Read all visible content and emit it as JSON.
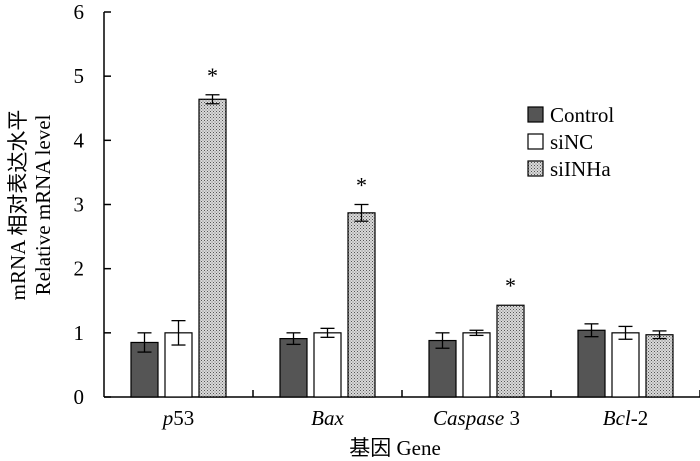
{
  "chart_data": {
    "type": "bar",
    "title": "",
    "ylabel_line1": "mRNA 相对表达水平",
    "ylabel_line2": "Relative mRNA level",
    "xlabel": "基因 Gene",
    "ylim": [
      0,
      6
    ],
    "yticks": [
      0,
      1,
      2,
      3,
      4,
      5,
      6
    ],
    "categories": [
      {
        "italic": "p",
        "plain": "53"
      },
      {
        "italic": "Bax",
        "plain": ""
      },
      {
        "italic": "Caspase",
        "plain": " 3"
      },
      {
        "italic": "Bcl",
        "plain": "-2"
      }
    ],
    "series": [
      {
        "name": "Control",
        "fill": "#555555",
        "pattern": "solid",
        "values": [
          0.85,
          0.91,
          0.88,
          1.04
        ],
        "errors": [
          0.15,
          0.09,
          0.12,
          0.1
        ]
      },
      {
        "name": "siNC",
        "fill": "#ffffff",
        "pattern": "solid",
        "values": [
          1.0,
          1.0,
          1.0,
          1.0
        ],
        "errors": [
          0.19,
          0.07,
          0.04,
          0.1
        ]
      },
      {
        "name": "siINHa",
        "fill": "#bbbbbb",
        "pattern": "stipple",
        "values": [
          4.64,
          2.87,
          1.43,
          0.97
        ],
        "errors": [
          0.07,
          0.13,
          0.0,
          0.06
        ]
      }
    ],
    "significance": [
      "*",
      "*",
      "*",
      ""
    ],
    "legend_position": "right"
  }
}
